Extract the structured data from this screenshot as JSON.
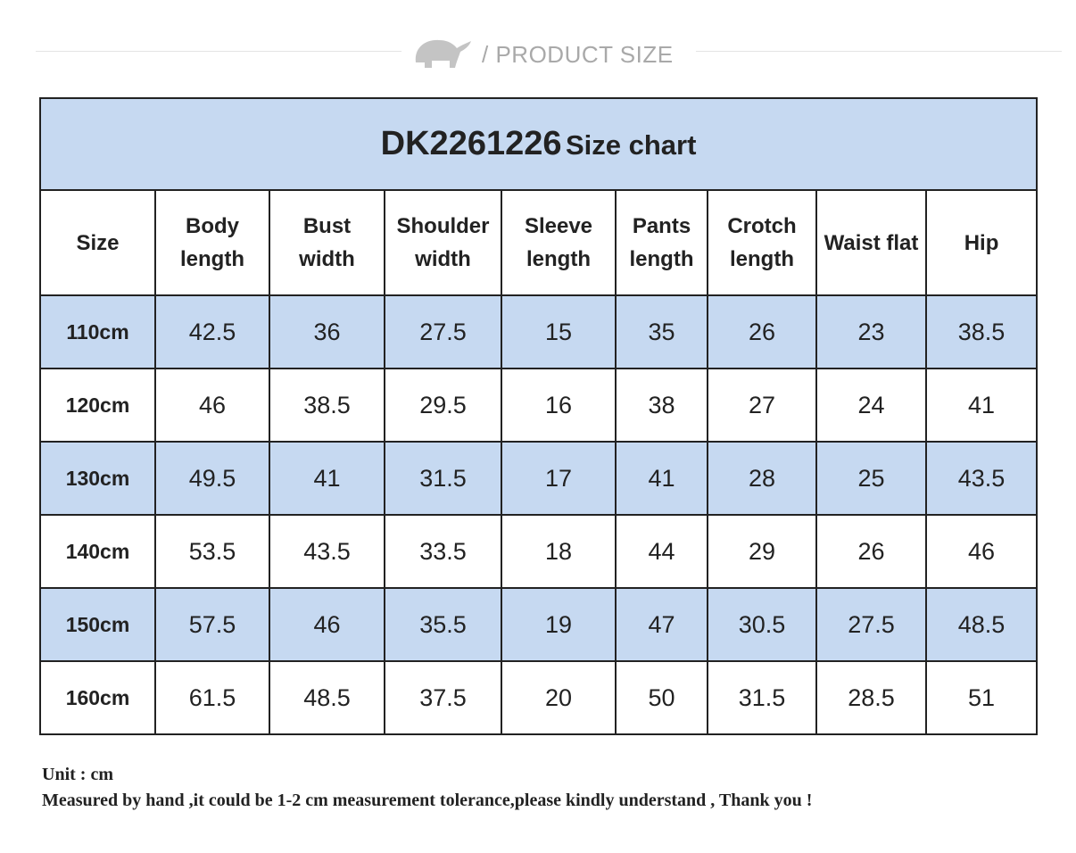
{
  "header": {
    "label": "/ PRODUCT SIZE"
  },
  "table": {
    "title_code": "DK2261226",
    "title_suffix": "Size chart",
    "columns": [
      "Size",
      "Body length",
      "Bust width",
      "Shoulder width",
      "Sleeve length",
      "Pants length",
      "Crotch length",
      "Waist flat",
      "Hip"
    ],
    "rows": [
      [
        "110cm",
        "42.5",
        "36",
        "27.5",
        "15",
        "35",
        "26",
        "23",
        "38.5"
      ],
      [
        "120cm",
        "46",
        "38.5",
        "29.5",
        "16",
        "38",
        "27",
        "24",
        "41"
      ],
      [
        "130cm",
        "49.5",
        "41",
        "31.5",
        "17",
        "41",
        "28",
        "25",
        "43.5"
      ],
      [
        "140cm",
        "53.5",
        "43.5",
        "33.5",
        "18",
        "44",
        "29",
        "26",
        "46"
      ],
      [
        "150cm",
        "57.5",
        "46",
        "35.5",
        "19",
        "47",
        "30.5",
        "27.5",
        "48.5"
      ],
      [
        "160cm",
        "61.5",
        "48.5",
        "37.5",
        "20",
        "50",
        "31.5",
        "28.5",
        "51"
      ]
    ]
  },
  "notes": [
    "Unit : cm",
    "Measured by hand ,it could be 1-2 cm measurement tolerance,please kindly understand , Thank you !"
  ]
}
